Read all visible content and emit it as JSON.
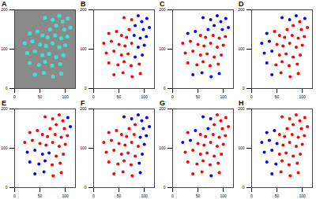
{
  "chart_data": [
    {
      "type": "image",
      "title": "A",
      "xlim": [
        0,
        120
      ],
      "ylim": [
        0,
        200
      ],
      "xticks": [
        0,
        50,
        100
      ],
      "yticks": [
        0,
        100,
        200
      ],
      "color": "#40e0d0",
      "x": [
        60,
        75,
        88,
        95,
        105,
        82,
        98,
        110,
        70,
        30,
        45,
        55,
        65,
        80,
        92,
        104,
        20,
        35,
        50,
        62,
        75,
        88,
        100,
        25,
        40,
        55,
        68,
        82,
        96,
        30,
        48,
        60,
        74,
        90,
        40,
        58,
        76,
        92
      ],
      "y": [
        180,
        175,
        185,
        170,
        178,
        160,
        150,
        155,
        150,
        140,
        145,
        135,
        130,
        135,
        128,
        132,
        115,
        120,
        112,
        108,
        115,
        105,
        110,
        90,
        95,
        85,
        88,
        80,
        85,
        65,
        60,
        68,
        58,
        62,
        35,
        40,
        30,
        38
      ]
    },
    {
      "type": "scatter",
      "title": "B",
      "xlim": [
        0,
        120
      ],
      "ylim": [
        0,
        200
      ],
      "xticks": [
        0,
        50,
        100
      ],
      "yticks": [
        0,
        100,
        200
      ],
      "x": [
        60,
        75,
        88,
        95,
        105,
        82,
        98,
        110,
        70,
        30,
        45,
        55,
        65,
        80,
        92,
        104,
        20,
        35,
        50,
        62,
        75,
        88,
        100,
        25,
        40,
        55,
        68,
        82,
        96,
        30,
        48,
        60,
        74,
        90,
        40,
        58,
        76,
        92
      ],
      "y": [
        180,
        175,
        185,
        170,
        178,
        160,
        150,
        155,
        150,
        140,
        145,
        135,
        130,
        135,
        128,
        132,
        115,
        120,
        112,
        108,
        115,
        105,
        110,
        90,
        95,
        85,
        88,
        80,
        85,
        65,
        60,
        68,
        58,
        62,
        35,
        40,
        30,
        38
      ],
      "colors": [
        "red",
        "red",
        "blue",
        "blue",
        "blue",
        "blue",
        "blue",
        "blue",
        "red",
        "red",
        "red",
        "red",
        "red",
        "blue",
        "blue",
        "blue",
        "red",
        "red",
        "red",
        "red",
        "red",
        "blue",
        "blue",
        "red",
        "red",
        "red",
        "red",
        "blue",
        "blue",
        "red",
        "red",
        "red",
        "red",
        "red",
        "red",
        "red",
        "red",
        "red"
      ]
    },
    {
      "type": "scatter",
      "title": "C",
      "xlim": [
        0,
        120
      ],
      "ylim": [
        0,
        200
      ],
      "xticks": [
        0,
        50,
        100
      ],
      "yticks": [
        0,
        100,
        200
      ],
      "x": [
        60,
        75,
        88,
        95,
        105,
        82,
        98,
        110,
        70,
        30,
        45,
        55,
        65,
        80,
        92,
        104,
        20,
        35,
        50,
        62,
        75,
        88,
        100,
        25,
        40,
        55,
        68,
        82,
        96,
        30,
        48,
        60,
        74,
        90,
        40,
        58,
        76,
        92
      ],
      "y": [
        180,
        175,
        185,
        170,
        178,
        160,
        150,
        155,
        150,
        140,
        145,
        135,
        130,
        135,
        128,
        132,
        115,
        120,
        112,
        108,
        115,
        105,
        110,
        90,
        95,
        85,
        88,
        80,
        85,
        65,
        60,
        68,
        58,
        62,
        35,
        40,
        30,
        38
      ],
      "colors": [
        "blue",
        "blue",
        "blue",
        "blue",
        "blue",
        "blue",
        "blue",
        "blue",
        "blue",
        "blue",
        "blue",
        "red",
        "red",
        "red",
        "red",
        "red",
        "red",
        "red",
        "red",
        "red",
        "red",
        "red",
        "red",
        "red",
        "red",
        "red",
        "red",
        "red",
        "red",
        "red",
        "red",
        "red",
        "red",
        "red",
        "blue",
        "blue",
        "blue",
        "blue"
      ]
    },
    {
      "type": "scatter",
      "title": "D",
      "xlim": [
        0,
        120
      ],
      "ylim": [
        0,
        200
      ],
      "xticks": [
        0,
        50,
        100
      ],
      "yticks": [
        0,
        100,
        200
      ],
      "x": [
        60,
        75,
        88,
        95,
        105,
        82,
        98,
        110,
        70,
        30,
        45,
        55,
        65,
        80,
        92,
        104,
        20,
        35,
        50,
        62,
        75,
        88,
        100,
        25,
        40,
        55,
        68,
        82,
        96,
        30,
        48,
        60,
        74,
        90,
        40,
        58,
        76,
        92
      ],
      "y": [
        180,
        175,
        185,
        170,
        178,
        160,
        150,
        155,
        150,
        140,
        145,
        135,
        130,
        135,
        128,
        132,
        115,
        120,
        112,
        108,
        115,
        105,
        110,
        90,
        95,
        85,
        88,
        80,
        85,
        65,
        60,
        68,
        58,
        62,
        35,
        40,
        30,
        38
      ],
      "colors": [
        "blue",
        "blue",
        "blue",
        "red",
        "blue",
        "red",
        "red",
        "red",
        "red",
        "blue",
        "red",
        "red",
        "red",
        "red",
        "red",
        "red",
        "blue",
        "blue",
        "red",
        "red",
        "red",
        "red",
        "red",
        "blue",
        "blue",
        "red",
        "red",
        "red",
        "red",
        "blue",
        "red",
        "red",
        "red",
        "red",
        "blue",
        "red",
        "red",
        "red"
      ]
    },
    {
      "type": "scatter",
      "title": "E",
      "xlim": [
        0,
        120
      ],
      "ylim": [
        0,
        200
      ],
      "xticks": [
        0,
        50,
        100
      ],
      "yticks": [
        0,
        100,
        200
      ],
      "x": [
        60,
        75,
        88,
        95,
        105,
        82,
        98,
        110,
        70,
        30,
        45,
        55,
        65,
        80,
        92,
        104,
        20,
        35,
        50,
        62,
        75,
        88,
        100,
        25,
        40,
        55,
        68,
        82,
        96,
        30,
        48,
        60,
        74,
        90,
        40,
        58,
        76,
        92
      ],
      "y": [
        180,
        175,
        185,
        170,
        178,
        160,
        150,
        155,
        150,
        140,
        145,
        135,
        130,
        135,
        128,
        132,
        115,
        120,
        112,
        108,
        115,
        105,
        110,
        90,
        95,
        85,
        88,
        80,
        85,
        65,
        60,
        68,
        58,
        62,
        35,
        40,
        30,
        38
      ],
      "colors": [
        "red",
        "red",
        "red",
        "red",
        "blue",
        "red",
        "red",
        "blue",
        "red",
        "red",
        "red",
        "red",
        "red",
        "red",
        "red",
        "red",
        "red",
        "red",
        "red",
        "red",
        "red",
        "red",
        "red",
        "blue",
        "blue",
        "blue",
        "blue",
        "red",
        "red",
        "blue",
        "blue",
        "blue",
        "red",
        "red",
        "blue",
        "blue",
        "red",
        "red"
      ]
    },
    {
      "type": "scatter",
      "title": "F",
      "xlim": [
        0,
        120
      ],
      "ylim": [
        0,
        200
      ],
      "xticks": [
        0,
        50,
        100
      ],
      "yticks": [
        0,
        100,
        200
      ],
      "x": [
        60,
        75,
        88,
        95,
        105,
        82,
        98,
        110,
        70,
        30,
        45,
        55,
        65,
        80,
        92,
        104,
        20,
        35,
        50,
        62,
        75,
        88,
        100,
        25,
        40,
        55,
        68,
        82,
        96,
        30,
        48,
        60,
        74,
        90,
        40,
        58,
        76,
        92
      ],
      "y": [
        180,
        175,
        185,
        170,
        178,
        160,
        150,
        155,
        150,
        140,
        145,
        135,
        130,
        135,
        128,
        132,
        115,
        120,
        112,
        108,
        115,
        105,
        110,
        90,
        95,
        85,
        88,
        80,
        85,
        65,
        60,
        68,
        58,
        62,
        35,
        40,
        30,
        38
      ],
      "colors": [
        "blue",
        "blue",
        "blue",
        "blue",
        "blue",
        "red",
        "blue",
        "blue",
        "red",
        "red",
        "red",
        "red",
        "red",
        "red",
        "blue",
        "blue",
        "red",
        "red",
        "red",
        "red",
        "red",
        "red",
        "blue",
        "red",
        "red",
        "red",
        "red",
        "red",
        "blue",
        "red",
        "red",
        "red",
        "red",
        "blue",
        "red",
        "red",
        "red",
        "blue"
      ]
    },
    {
      "type": "scatter",
      "title": "G",
      "xlim": [
        0,
        120
      ],
      "ylim": [
        0,
        200
      ],
      "xticks": [
        0,
        50,
        100
      ],
      "yticks": [
        0,
        100,
        200
      ],
      "x": [
        60,
        75,
        88,
        95,
        105,
        82,
        98,
        110,
        70,
        30,
        45,
        55,
        65,
        80,
        92,
        104,
        20,
        35,
        50,
        62,
        75,
        88,
        100,
        25,
        40,
        55,
        68,
        82,
        96,
        30,
        48,
        60,
        74,
        90,
        40,
        58,
        76,
        92
      ],
      "y": [
        180,
        175,
        185,
        170,
        178,
        160,
        150,
        155,
        150,
        140,
        145,
        135,
        130,
        135,
        128,
        132,
        115,
        120,
        112,
        108,
        115,
        105,
        110,
        90,
        95,
        85,
        88,
        80,
        85,
        65,
        60,
        68,
        58,
        62,
        35,
        40,
        30,
        38
      ],
      "colors": [
        "blue",
        "blue",
        "red",
        "red",
        "red",
        "red",
        "red",
        "red",
        "blue",
        "red",
        "blue",
        "red",
        "red",
        "red",
        "red",
        "red",
        "blue",
        "blue",
        "red",
        "red",
        "red",
        "red",
        "red",
        "red",
        "red",
        "red",
        "red",
        "red",
        "red",
        "red",
        "red",
        "red",
        "red",
        "red",
        "red",
        "red",
        "blue",
        "red"
      ]
    },
    {
      "type": "scatter",
      "title": "H",
      "xlim": [
        0,
        120
      ],
      "ylim": [
        0,
        200
      ],
      "xticks": [
        0,
        50,
        100
      ],
      "yticks": [
        0,
        100,
        200
      ],
      "x": [
        60,
        75,
        88,
        95,
        105,
        82,
        98,
        110,
        70,
        30,
        45,
        55,
        65,
        80,
        92,
        104,
        20,
        35,
        50,
        62,
        75,
        88,
        100,
        25,
        40,
        55,
        68,
        82,
        96,
        30,
        48,
        60,
        74,
        90,
        40,
        58,
        76,
        92
      ],
      "y": [
        180,
        175,
        185,
        170,
        178,
        160,
        150,
        155,
        150,
        140,
        145,
        135,
        130,
        135,
        128,
        132,
        115,
        120,
        112,
        108,
        115,
        105,
        110,
        90,
        95,
        85,
        88,
        80,
        85,
        65,
        60,
        68,
        58,
        62,
        35,
        40,
        30,
        38
      ],
      "colors": [
        "red",
        "red",
        "red",
        "red",
        "red",
        "red",
        "red",
        "red",
        "red",
        "blue",
        "blue",
        "red",
        "red",
        "red",
        "red",
        "red",
        "blue",
        "blue",
        "blue",
        "red",
        "red",
        "red",
        "red",
        "blue",
        "blue",
        "red",
        "red",
        "red",
        "red",
        "blue",
        "blue",
        "red",
        "red",
        "red",
        "blue",
        "red",
        "red",
        "red"
      ]
    }
  ]
}
